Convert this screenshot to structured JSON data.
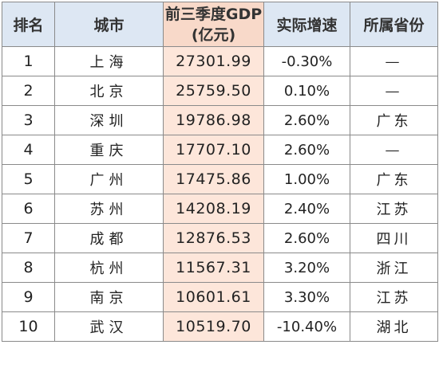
{
  "table": {
    "headers": {
      "rank": "排名",
      "city": "城市",
      "gdp_line1": "前三季度GDP",
      "gdp_line2": "(亿元)",
      "growth": "实际增速",
      "province": "所属省份"
    },
    "rows": [
      {
        "rank": "1",
        "city": "上海",
        "gdp": "27301.99",
        "growth": "-0.30%",
        "province": "—"
      },
      {
        "rank": "2",
        "city": "北京",
        "gdp": "25759.50",
        "growth": "0.10%",
        "province": "—"
      },
      {
        "rank": "3",
        "city": "深圳",
        "gdp": "19786.98",
        "growth": "2.60%",
        "province": "广东"
      },
      {
        "rank": "4",
        "city": "重庆",
        "gdp": "17707.10",
        "growth": "2.60%",
        "province": "—"
      },
      {
        "rank": "5",
        "city": "广州",
        "gdp": "17475.86",
        "growth": "1.00%",
        "province": "广东"
      },
      {
        "rank": "6",
        "city": "苏州",
        "gdp": "14208.19",
        "growth": "2.40%",
        "province": "江苏"
      },
      {
        "rank": "7",
        "city": "成都",
        "gdp": "12876.53",
        "growth": "2.60%",
        "province": "四川"
      },
      {
        "rank": "8",
        "city": "杭州",
        "gdp": "11567.31",
        "growth": "3.20%",
        "province": "浙江"
      },
      {
        "rank": "9",
        "city": "南京",
        "gdp": "10601.61",
        "growth": "3.30%",
        "province": "江苏"
      },
      {
        "rank": "10",
        "city": "武汉",
        "gdp": "10519.70",
        "growth": "-10.40%",
        "province": "湖北"
      }
    ]
  }
}
